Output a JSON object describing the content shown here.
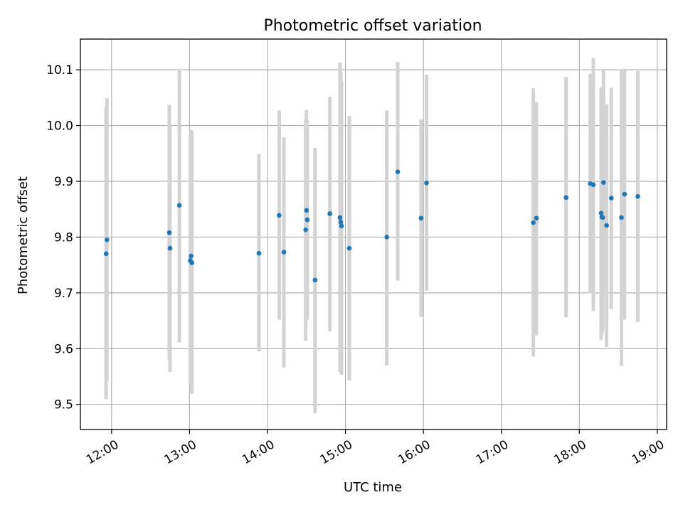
{
  "chart_data": {
    "type": "scatter",
    "title": "Photometric offset variation",
    "xlabel": "UTC time",
    "ylabel": "Photometric offset",
    "xlim": [
      11.6,
      19.12
    ],
    "ylim": [
      9.455,
      10.155
    ],
    "grid": true,
    "x_ticks": [
      {
        "value": 12,
        "label": "12:00"
      },
      {
        "value": 13,
        "label": "13:00"
      },
      {
        "value": 14,
        "label": "14:00"
      },
      {
        "value": 15,
        "label": "15:00"
      },
      {
        "value": 16,
        "label": "16:00"
      },
      {
        "value": 17,
        "label": "17:00"
      },
      {
        "value": 18,
        "label": "18:00"
      },
      {
        "value": 19,
        "label": "19:00"
      }
    ],
    "y_ticks": [
      {
        "value": 9.5,
        "label": "9.5"
      },
      {
        "value": 9.6,
        "label": "9.6"
      },
      {
        "value": 9.7,
        "label": "9.7"
      },
      {
        "value": 9.8,
        "label": "9.8"
      },
      {
        "value": 9.9,
        "label": "9.9"
      },
      {
        "value": 10.0,
        "label": "10.0"
      },
      {
        "value": 10.1,
        "label": "10.1"
      }
    ],
    "colors": {
      "point": "#1f77b4",
      "errorbar": "#d3d3d3"
    },
    "points": [
      {
        "x": 11.93,
        "y": 9.77,
        "lo": 9.509,
        "hi": 10.033
      },
      {
        "x": 11.94,
        "y": 9.795,
        "lo": 9.54,
        "hi": 10.049
      },
      {
        "x": 12.74,
        "y": 9.808,
        "lo": 9.58,
        "hi": 10.037
      },
      {
        "x": 12.75,
        "y": 9.78,
        "lo": 9.558,
        "hi": 10.002
      },
      {
        "x": 12.87,
        "y": 9.857,
        "lo": 9.611,
        "hi": 10.102
      },
      {
        "x": 13.01,
        "y": 9.758,
        "lo": 9.535,
        "hi": 9.985
      },
      {
        "x": 13.02,
        "y": 9.766,
        "lo": 9.54,
        "hi": 9.992
      },
      {
        "x": 13.03,
        "y": 9.754,
        "lo": 9.519,
        "hi": 9.99
      },
      {
        "x": 13.89,
        "y": 9.771,
        "lo": 9.595,
        "hi": 9.949
      },
      {
        "x": 14.15,
        "y": 9.839,
        "lo": 9.652,
        "hi": 10.027
      },
      {
        "x": 14.21,
        "y": 9.773,
        "lo": 9.566,
        "hi": 9.979
      },
      {
        "x": 14.49,
        "y": 9.813,
        "lo": 9.614,
        "hi": 10.012
      },
      {
        "x": 14.5,
        "y": 9.848,
        "lo": 9.668,
        "hi": 10.028
      },
      {
        "x": 14.51,
        "y": 9.831,
        "lo": 9.652,
        "hi": 10.009
      },
      {
        "x": 14.61,
        "y": 9.723,
        "lo": 9.484,
        "hi": 9.96
      },
      {
        "x": 14.8,
        "y": 9.842,
        "lo": 9.631,
        "hi": 10.052
      },
      {
        "x": 14.93,
        "y": 9.835,
        "lo": 9.558,
        "hi": 10.113
      },
      {
        "x": 14.94,
        "y": 9.827,
        "lo": 9.56,
        "hi": 10.096
      },
      {
        "x": 14.95,
        "y": 9.82,
        "lo": 9.553,
        "hi": 10.08
      },
      {
        "x": 15.05,
        "y": 9.78,
        "lo": 9.543,
        "hi": 10.017
      },
      {
        "x": 15.53,
        "y": 9.8,
        "lo": 9.57,
        "hi": 10.027
      },
      {
        "x": 15.67,
        "y": 9.917,
        "lo": 9.722,
        "hi": 10.114
      },
      {
        "x": 15.97,
        "y": 9.834,
        "lo": 9.657,
        "hi": 10.011
      },
      {
        "x": 16.04,
        "y": 9.897,
        "lo": 9.704,
        "hi": 10.091
      },
      {
        "x": 17.41,
        "y": 9.826,
        "lo": 9.586,
        "hi": 10.067
      },
      {
        "x": 17.45,
        "y": 9.834,
        "lo": 9.624,
        "hi": 10.042
      },
      {
        "x": 17.83,
        "y": 9.871,
        "lo": 9.656,
        "hi": 10.087
      },
      {
        "x": 18.14,
        "y": 9.896,
        "lo": 9.699,
        "hi": 10.093
      },
      {
        "x": 18.18,
        "y": 9.894,
        "lo": 9.667,
        "hi": 10.121
      },
      {
        "x": 18.28,
        "y": 9.843,
        "lo": 9.616,
        "hi": 10.069
      },
      {
        "x": 18.29,
        "y": 9.836,
        "lo": 9.625,
        "hi": 10.046
      },
      {
        "x": 18.3,
        "y": 9.835,
        "lo": 9.632,
        "hi": 10.062
      },
      {
        "x": 18.31,
        "y": 9.898,
        "lo": 9.696,
        "hi": 10.1
      },
      {
        "x": 18.35,
        "y": 9.821,
        "lo": 9.603,
        "hi": 10.038
      },
      {
        "x": 18.41,
        "y": 9.87,
        "lo": 9.671,
        "hi": 10.068
      },
      {
        "x": 18.54,
        "y": 9.835,
        "lo": 9.569,
        "hi": 10.1
      },
      {
        "x": 18.58,
        "y": 9.877,
        "lo": 9.652,
        "hi": 10.102
      },
      {
        "x": 18.75,
        "y": 9.873,
        "lo": 9.648,
        "hi": 10.098
      }
    ]
  }
}
